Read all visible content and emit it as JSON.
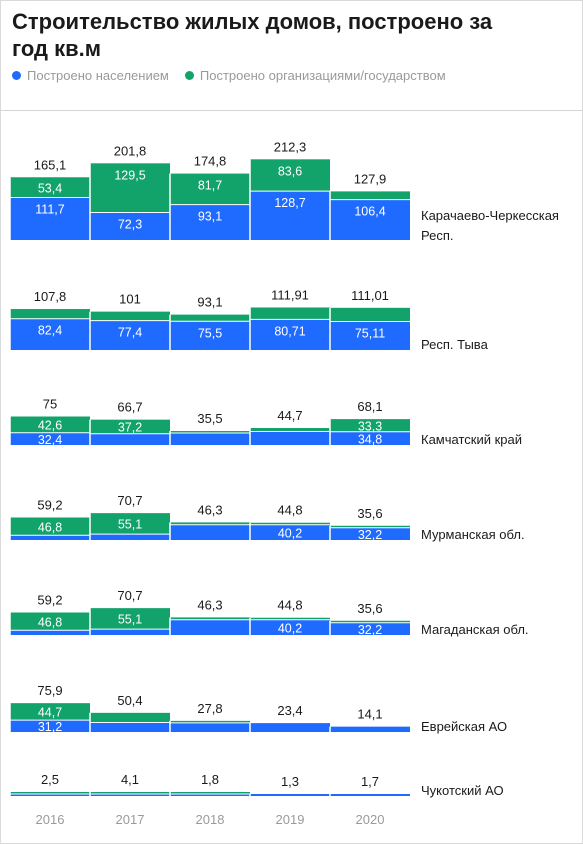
{
  "title": "Строительство жилых домов, построено за год кв.м",
  "legend": {
    "population": "Построено населением",
    "organizations": "Построено организациями/государством"
  },
  "colors": {
    "population": "#1f6bff",
    "organizations": "#12a36b"
  },
  "chart_data": {
    "type": "bar",
    "stacked": true,
    "categories": [
      "2016",
      "2017",
      "2018",
      "2019",
      "2020"
    ],
    "panels": [
      {
        "region": "Карачаево-Черкесская Респ.",
        "region_lines": [
          "Карачаево-Черкесская",
          "Респ."
        ],
        "totals": [
          "165,1",
          "201,8",
          "174,8",
          "212,3",
          "127,9"
        ],
        "population": [
          111.7,
          72.3,
          93.1,
          128.7,
          106.4
        ],
        "population_labels": [
          "111,7",
          "72,3",
          "93,1",
          "128,7",
          "106,4"
        ],
        "organizations": [
          53.4,
          129.5,
          81.7,
          83.6,
          21.5
        ],
        "organizations_labels": [
          "53,4",
          "129,5",
          "81,7",
          "83,6",
          ""
        ]
      },
      {
        "region": "Респ. Тыва",
        "region_lines": [
          "Респ. Тыва"
        ],
        "totals": [
          "107,8",
          "101",
          "93,1",
          "111,91",
          "111,01"
        ],
        "population": [
          82.4,
          77.4,
          75.5,
          80.71,
          75.11
        ],
        "population_labels": [
          "82,4",
          "77,4",
          "75,5",
          "80,71",
          "75,11"
        ],
        "organizations": [
          25.4,
          23.6,
          17.6,
          31.2,
          35.9
        ],
        "organizations_labels": [
          "",
          "",
          "",
          "",
          ""
        ]
      },
      {
        "region": "Камчатский край",
        "region_lines": [
          "Камчатский край"
        ],
        "totals": [
          "75",
          "66,7",
          "35,5",
          "44,7",
          "68,1"
        ],
        "population": [
          32.4,
          29.5,
          31.5,
          35.5,
          34.8
        ],
        "population_labels": [
          "32,4",
          "",
          "",
          "",
          "34,8"
        ],
        "organizations": [
          42.6,
          37.2,
          4.0,
          9.2,
          33.3
        ],
        "organizations_labels": [
          "42,6",
          "37,2",
          "",
          "",
          "33,3"
        ]
      },
      {
        "region": "Мурманская обл.",
        "region_lines": [
          "Мурманская обл."
        ],
        "totals": [
          "59,2",
          "70,7",
          "46,3",
          "44,8",
          "35,6"
        ],
        "population": [
          12.4,
          15.6,
          40.0,
          40.2,
          32.2
        ],
        "population_labels": [
          "",
          "",
          "",
          "40,2",
          "32,2"
        ],
        "organizations": [
          46.8,
          55.1,
          6.3,
          4.6,
          3.4
        ],
        "organizations_labels": [
          "46,8",
          "55,1",
          "",
          "",
          ""
        ]
      },
      {
        "region": "Магаданская обл.",
        "region_lines": [
          "Магаданская обл."
        ],
        "totals": [
          "59,2",
          "70,7",
          "46,3",
          "44,8",
          "35,6"
        ],
        "population": [
          12.4,
          15.6,
          40.0,
          40.2,
          32.2
        ],
        "population_labels": [
          "",
          "",
          "",
          "40,2",
          "32,2"
        ],
        "organizations": [
          46.8,
          55.1,
          6.3,
          4.6,
          3.4
        ],
        "organizations_labels": [
          "46,8",
          "55,1",
          "",
          "",
          ""
        ]
      },
      {
        "region": "Еврейская АО",
        "region_lines": [
          "Еврейская АО"
        ],
        "totals": [
          "75,9",
          "50,4",
          "27,8",
          "23,4",
          "14,1"
        ],
        "population": [
          31.2,
          25.0,
          24.0,
          23.4,
          14.1
        ],
        "population_labels": [
          "31,2",
          "",
          "",
          "",
          ""
        ],
        "organizations": [
          44.7,
          25.4,
          3.8,
          0,
          0
        ],
        "organizations_labels": [
          "44,7",
          "",
          "",
          "",
          ""
        ]
      },
      {
        "region": "Чукотский АО",
        "region_lines": [
          "Чукотский АО"
        ],
        "totals": [
          "2,5",
          "4,1",
          "1,8",
          "1,3",
          "1,7"
        ],
        "population": [
          1.5,
          2.5,
          1.2,
          1.3,
          1.7
        ],
        "population_labels": [
          "",
          "",
          "",
          "",
          ""
        ],
        "organizations": [
          1.0,
          1.6,
          0.6,
          0,
          0
        ],
        "organizations_labels": [
          "",
          "",
          "",
          "",
          ""
        ]
      }
    ]
  }
}
